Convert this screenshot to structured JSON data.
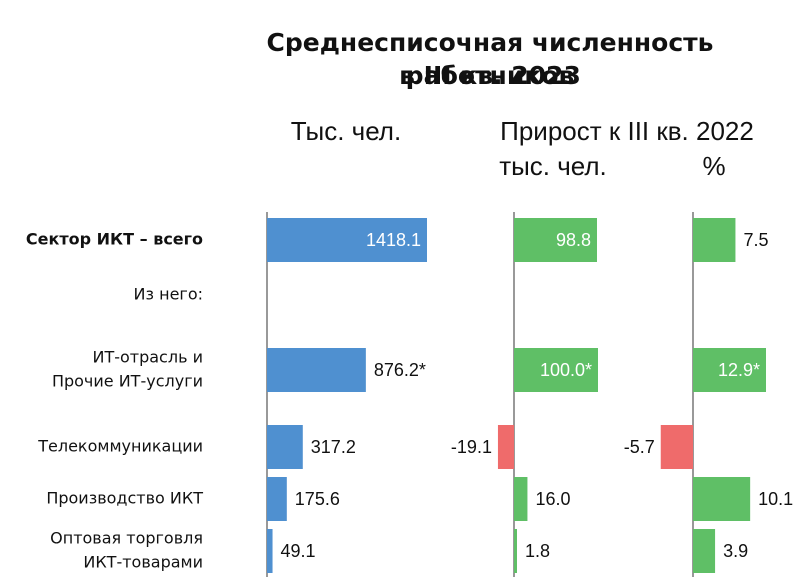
{
  "title": {
    "line1": "Среднесписочная численность работников",
    "line2": "в III кв. 2023"
  },
  "headers": {
    "total": "Тыс. чел.",
    "growth": "Прирост к III кв. 2022",
    "growth_abs": "тыс. чел.",
    "growth_pct": "%"
  },
  "colors": {
    "total_bar": "#4f90d0",
    "positive_bar": "#5fbf66",
    "negative_bar": "#ef6b6b",
    "axis": "#999999"
  },
  "chart_data": {
    "type": "bar",
    "orientation": "horizontal",
    "categories": [
      {
        "label": [
          "Сектор ИКТ – всего"
        ],
        "bold": true
      },
      {
        "label": [
          "Из него:"
        ],
        "header": true
      },
      {
        "label": [
          "ИТ-отрасль и",
          "Прочие ИТ-услуги"
        ]
      },
      {
        "label": [
          "Телекоммуникации"
        ]
      },
      {
        "label": [
          "Производство ИКТ"
        ]
      },
      {
        "label": [
          "Оптовая торговля",
          "ИКТ-товарами"
        ]
      }
    ],
    "series": [
      {
        "name": "Тыс. чел.",
        "values": [
          1418.1,
          null,
          876.2,
          317.2,
          175.6,
          49.1
        ],
        "labels": [
          "1418.1",
          null,
          "876.2*",
          "317.2",
          "175.6",
          "49.1"
        ],
        "label_inside": [
          true,
          false,
          false,
          false,
          false,
          false
        ]
      },
      {
        "name": "тыс. чел.",
        "values": [
          98.8,
          null,
          100.0,
          -19.1,
          16.0,
          1.8
        ],
        "labels": [
          "98.8",
          null,
          "100.0*",
          "-19.1",
          "16.0",
          "1.8"
        ],
        "label_inside": [
          true,
          false,
          true,
          false,
          false,
          false
        ]
      },
      {
        "name": "%",
        "values": [
          7.5,
          null,
          12.9,
          -5.7,
          10.1,
          3.9
        ],
        "labels": [
          "7.5",
          null,
          "12.9*",
          "-5.7",
          "10.1",
          "3.9"
        ],
        "label_inside": [
          false,
          false,
          true,
          false,
          false,
          false
        ]
      }
    ]
  }
}
